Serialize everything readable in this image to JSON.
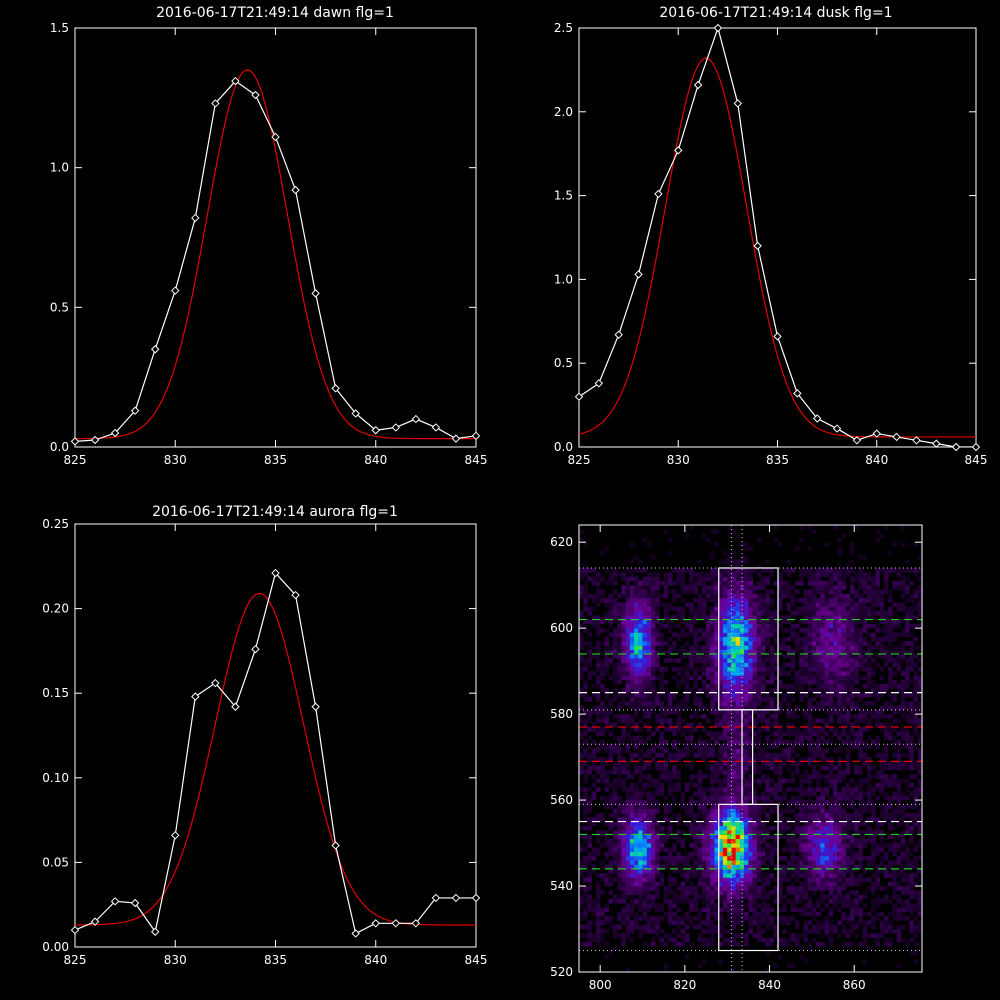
{
  "colors": {
    "background": "#000000",
    "axes": "#ffffff",
    "data_line": "#ffffff",
    "fit_line": "#e00000",
    "guide_green": "#22cc22",
    "guide_white": "#ffffff",
    "guide_red": "#e00000"
  },
  "chart_data": [
    {
      "type": "line",
      "title": "2016-06-17T21:49:14 dawn flg=1",
      "xlim": [
        825,
        845
      ],
      "ylim": [
        0,
        1.5
      ],
      "xticks": [
        "825",
        "830",
        "835",
        "840",
        "845"
      ],
      "yticks": [
        "0.0",
        "0.5",
        "1.0",
        "1.5"
      ],
      "series": [
        {
          "role": "data",
          "marker": "diamond",
          "x": [
            825,
            826,
            827,
            828,
            829,
            830,
            831,
            832,
            833,
            834,
            835,
            836,
            837,
            838,
            839,
            840,
            841,
            842,
            843,
            844,
            845
          ],
          "y": [
            0.02,
            0.025,
            0.05,
            0.13,
            0.35,
            0.56,
            0.82,
            1.23,
            1.31,
            1.26,
            1.11,
            0.92,
            0.55,
            0.21,
            0.12,
            0.06,
            0.07,
            0.1,
            0.07,
            0.03,
            0.04
          ]
        },
        {
          "role": "fit",
          "model": "gaussian",
          "amplitude": 1.32,
          "center": 833.6,
          "sigma": 2.0,
          "baseline": 0.03
        }
      ]
    },
    {
      "type": "line",
      "title": "2016-06-17T21:49:14 dusk flg=1",
      "xlim": [
        825,
        845
      ],
      "ylim": [
        0,
        2.5
      ],
      "xticks": [
        "825",
        "830",
        "835",
        "840",
        "845"
      ],
      "yticks": [
        "0.0",
        "0.5",
        "1.0",
        "1.5",
        "2.0",
        "2.5"
      ],
      "series": [
        {
          "role": "data",
          "marker": "diamond",
          "x": [
            825,
            826,
            827,
            828,
            829,
            830,
            831,
            832,
            833,
            834,
            835,
            836,
            837,
            838,
            839,
            840,
            841,
            842,
            843,
            844,
            845
          ],
          "y": [
            0.3,
            0.38,
            0.67,
            1.03,
            1.51,
            1.77,
            2.16,
            2.5,
            2.05,
            1.2,
            0.66,
            0.32,
            0.17,
            0.11,
            0.04,
            0.08,
            0.06,
            0.04,
            0.02,
            0.0,
            0.0
          ]
        },
        {
          "role": "fit",
          "model": "gaussian",
          "amplitude": 2.26,
          "center": 831.4,
          "sigma": 2.05,
          "baseline": 0.06
        }
      ]
    },
    {
      "type": "line",
      "title": "2016-06-17T21:49:14 aurora flg=1",
      "xlim": [
        825,
        845
      ],
      "ylim": [
        0,
        0.25
      ],
      "xticks": [
        "825",
        "830",
        "835",
        "840",
        "845"
      ],
      "yticks": [
        "0.00",
        "0.05",
        "0.10",
        "0.15",
        "0.20",
        "0.25"
      ],
      "series": [
        {
          "role": "data",
          "marker": "diamond",
          "x": [
            825,
            826,
            827,
            828,
            829,
            830,
            831,
            832,
            833,
            834,
            835,
            836,
            837,
            838,
            839,
            840,
            841,
            842,
            843,
            844,
            845
          ],
          "y": [
            0.01,
            0.015,
            0.027,
            0.026,
            0.009,
            0.066,
            0.148,
            0.156,
            0.142,
            0.176,
            0.221,
            0.208,
            0.142,
            0.06,
            0.008,
            0.014,
            0.014,
            0.014,
            0.029,
            0.029,
            0.029
          ]
        },
        {
          "role": "fit",
          "model": "gaussian",
          "amplitude": 0.196,
          "center": 834.2,
          "sigma": 2.2,
          "baseline": 0.013
        }
      ]
    },
    {
      "type": "heatmap",
      "title": "",
      "xlim": [
        795,
        876
      ],
      "ylim": [
        520,
        624
      ],
      "xticks": [
        "800",
        "820",
        "840",
        "860"
      ],
      "yticks": [
        "520",
        "540",
        "560",
        "580",
        "600",
        "620"
      ],
      "colormap": "rainbow",
      "blobs": [
        {
          "x": 809,
          "y": 597,
          "sx": 2.2,
          "sy": 6,
          "amp": 0.55
        },
        {
          "x": 809,
          "y": 549,
          "sx": 2.4,
          "sy": 5,
          "amp": 0.6
        },
        {
          "x": 832,
          "y": 596,
          "sx": 3.0,
          "sy": 8,
          "amp": 0.65
        },
        {
          "x": 831,
          "y": 549,
          "sx": 3.0,
          "sy": 5.5,
          "amp": 1.0
        },
        {
          "x": 855,
          "y": 597,
          "sx": 3.5,
          "sy": 7,
          "amp": 0.22
        },
        {
          "x": 853,
          "y": 549,
          "sx": 3.0,
          "sy": 5,
          "amp": 0.35
        },
        {
          "x": 832,
          "y": 570,
          "sx": 2.0,
          "sy": 6,
          "amp": 0.12
        }
      ],
      "boxes": [
        {
          "x0": 828,
          "x1": 842,
          "y0": 581,
          "y1": 614
        },
        {
          "x0": 828,
          "x1": 842,
          "y0": 525,
          "y1": 559
        },
        {
          "x0": 833.5,
          "x1": 836,
          "y0": 559,
          "y1": 581
        }
      ],
      "dotted_vlines": [
        831,
        833.5
      ],
      "dotted_hlines": [
        614,
        581,
        573,
        559,
        525
      ],
      "dashed_hlines": [
        {
          "y": 602,
          "color": "green"
        },
        {
          "y": 594,
          "color": "green"
        },
        {
          "y": 585,
          "color": "white"
        },
        {
          "y": 577,
          "color": "red"
        },
        {
          "y": 569,
          "color": "red"
        },
        {
          "y": 555,
          "color": "white"
        },
        {
          "y": 552,
          "color": "green"
        },
        {
          "y": 544,
          "color": "green"
        }
      ]
    }
  ]
}
